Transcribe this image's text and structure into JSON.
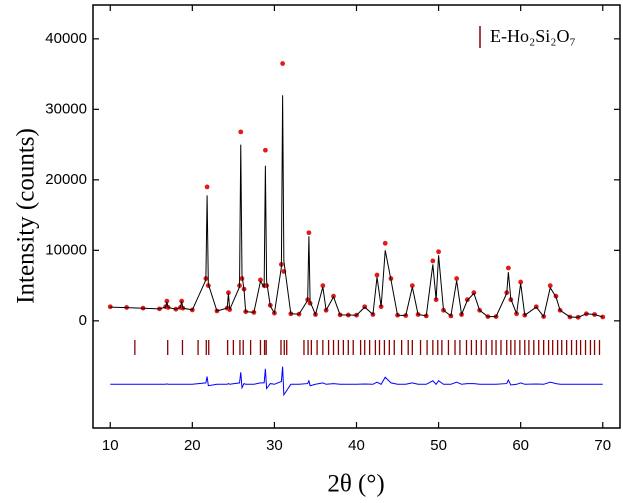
{
  "chart_data": {
    "type": "line",
    "xlabel": "2θ (°)",
    "ylabel": "Intensity (counts)",
    "xlim": [
      7.9,
      72.1
    ],
    "xticks": [
      10,
      20,
      30,
      40,
      50,
      60,
      70
    ],
    "ylim": [
      -15200,
      44800
    ],
    "yticks": [
      0,
      10000,
      20000,
      30000,
      40000
    ],
    "legend": "upper right",
    "x": [
      10,
      12,
      14,
      16,
      16.75,
      16.9,
      17.05,
      18,
      18.55,
      18.7,
      18.85,
      20,
      21.65,
      21.8,
      21.95,
      23,
      24.25,
      24.4,
      24.55,
      25.75,
      25.9,
      26.05,
      26.3,
      26.5,
      27.5,
      28.3,
      28.75,
      28.9,
      29.05,
      29.5,
      30,
      30.85,
      31,
      31.15,
      32,
      33,
      34.05,
      34.2,
      34.35,
      35,
      35.9,
      36.3,
      37.2,
      38,
      39,
      40,
      41,
      42,
      42.5,
      43,
      43.5,
      44.2,
      45,
      46,
      46.8,
      47.5,
      48.5,
      49.3,
      49.7,
      50,
      50.6,
      51.5,
      52.2,
      52.8,
      53.5,
      54.3,
      55,
      56,
      57,
      58.3,
      58.5,
      58.8,
      59.5,
      60,
      60.5,
      61.9,
      62.8,
      63.6,
      64.3,
      64.8,
      66,
      67,
      68,
      69,
      70
    ],
    "series": [
      {
        "color": "#e31a1c",
        "marker": "circle",
        "values": [
          2000,
          1900,
          1800,
          1700,
          2000,
          2800,
          1900,
          1650,
          1900,
          2800,
          1800,
          1550,
          6000,
          19000,
          5000,
          1400,
          1800,
          4000,
          1600,
          5000,
          26800,
          6000,
          4500,
          1300,
          1200,
          5800,
          5000,
          24200,
          5000,
          2200,
          1100,
          8000,
          36500,
          7000,
          1000,
          950,
          3000,
          12500,
          2500,
          900,
          5000,
          1500,
          3500,
          850,
          820,
          800,
          2000,
          900,
          6500,
          2000,
          11000,
          6000,
          800,
          750,
          5000,
          900,
          700,
          8500,
          3000,
          9800,
          1500,
          700,
          6000,
          900,
          3000,
          4000,
          1500,
          600,
          600,
          4000,
          7500,
          3000,
          1000,
          5500,
          800,
          2000,
          600,
          5000,
          3500,
          1500,
          550,
          500,
          1000,
          900,
          550
        ]
      },
      {
        "color": "#000000",
        "values": [
          1950,
          1880,
          1790,
          1700,
          1950,
          2700,
          1900,
          1650,
          1900,
          2750,
          1800,
          1550,
          5800,
          17800,
          5200,
          1400,
          1800,
          3900,
          1600,
          4800,
          25000,
          6500,
          4400,
          1300,
          1200,
          5600,
          4800,
          22000,
          5600,
          2100,
          1100,
          7600,
          32000,
          8500,
          1000,
          950,
          2900,
          12000,
          2700,
          900,
          4800,
          1500,
          3400,
          850,
          820,
          800,
          1950,
          900,
          6200,
          2000,
          10000,
          5800,
          800,
          750,
          4800,
          900,
          700,
          8000,
          3000,
          9300,
          1500,
          700,
          5700,
          900,
          2900,
          3900,
          1500,
          600,
          600,
          3900,
          6900,
          3100,
          1000,
          5300,
          800,
          1950,
          600,
          4700,
          3400,
          1500,
          550,
          500,
          1000,
          900,
          550
        ]
      },
      {
        "color": "#0000ff",
        "values": [
          -9000,
          -9000,
          -9000,
          -9000,
          -9000,
          -8950,
          -9000,
          -9000,
          -9000,
          -9000,
          -9000,
          -9000,
          -8800,
          -7900,
          -9200,
          -9000,
          -9000,
          -8900,
          -9000,
          -8800,
          -7300,
          -9500,
          -8900,
          -9000,
          -9000,
          -8800,
          -8800,
          -6800,
          -9600,
          -8900,
          -9000,
          -8600,
          -6500,
          -10500,
          -9000,
          -9000,
          -8900,
          -8500,
          -9200,
          -9000,
          -8800,
          -9000,
          -8900,
          -9000,
          -9000,
          -9000,
          -8950,
          -9000,
          -8700,
          -9000,
          -8000,
          -8800,
          -9000,
          -9000,
          -8800,
          -9000,
          -9000,
          -8500,
          -9000,
          -8500,
          -9000,
          -9000,
          -8700,
          -9000,
          -8900,
          -8900,
          -9000,
          -9000,
          -9000,
          -8900,
          -8400,
          -9100,
          -9000,
          -8800,
          -9000,
          -8950,
          -9000,
          -8700,
          -8900,
          -9000,
          -9000,
          -9000,
          -9000,
          -9000,
          -9000
        ]
      }
    ],
    "bragg": {
      "name": "E-Ho₂Si₂O₇",
      "color": "#8b0000",
      "positions": [
        13.0,
        17.0,
        18.8,
        20.7,
        21.7,
        22.0,
        24.3,
        25.0,
        25.8,
        26.2,
        27.1,
        28.3,
        28.8,
        29.0,
        30.8,
        31.2,
        31.5,
        33.6,
        34.1,
        34.5,
        35.2,
        35.9,
        36.6,
        37.2,
        37.8,
        38.4,
        39.0,
        39.6,
        40.5,
        41.0,
        41.6,
        42.3,
        42.8,
        43.4,
        44.0,
        44.6,
        45.5,
        46.3,
        46.8,
        47.8,
        48.6,
        49.3,
        49.9,
        50.4,
        51.2,
        52.0,
        52.6,
        53.4,
        54.0,
        54.6,
        55.2,
        55.8,
        56.5,
        57.0,
        57.6,
        58.3,
        58.8,
        59.3,
        59.9,
        60.5,
        61.0,
        61.6,
        62.2,
        62.8,
        63.4,
        63.9,
        64.5,
        65.0,
        65.6,
        66.2,
        66.8,
        67.3,
        67.9,
        68.5,
        69.0,
        69.6
      ]
    }
  }
}
